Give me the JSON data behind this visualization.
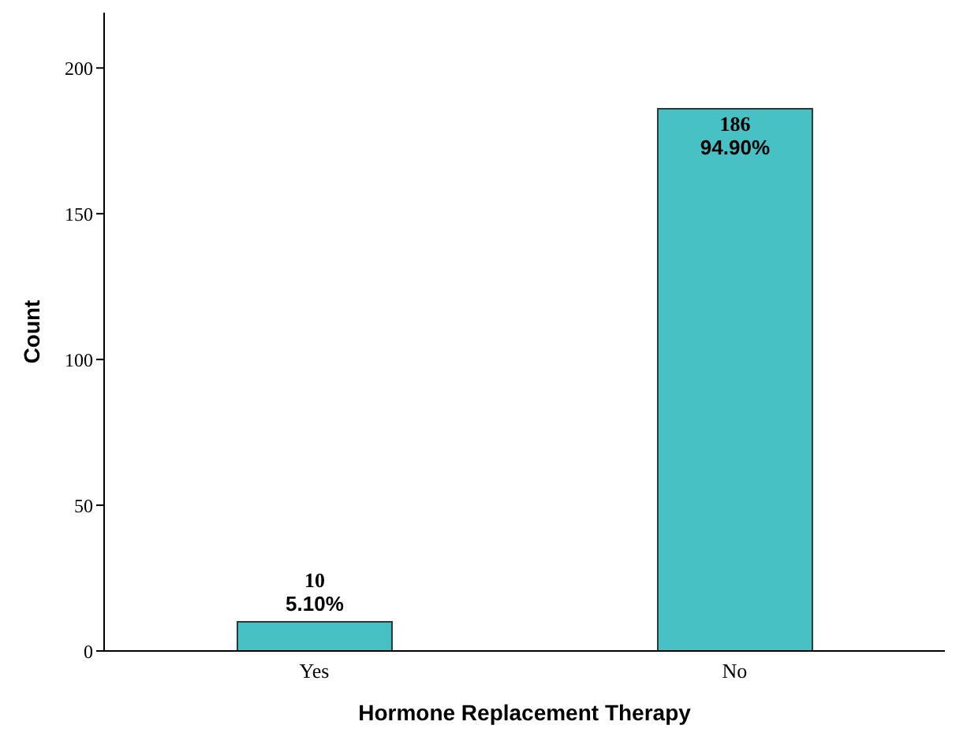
{
  "chart_data": {
    "type": "bar",
    "xlabel": "Hormone Replacement Therapy",
    "ylabel": "Count",
    "categories": [
      "Yes",
      "No"
    ],
    "values": [
      10,
      186
    ],
    "value_labels": [
      "10\n5.10%",
      "186\n94.90%"
    ],
    "color": "#48c1c4",
    "ylim": [
      0,
      219
    ],
    "yticks": [
      0,
      50,
      100,
      150,
      200
    ]
  }
}
